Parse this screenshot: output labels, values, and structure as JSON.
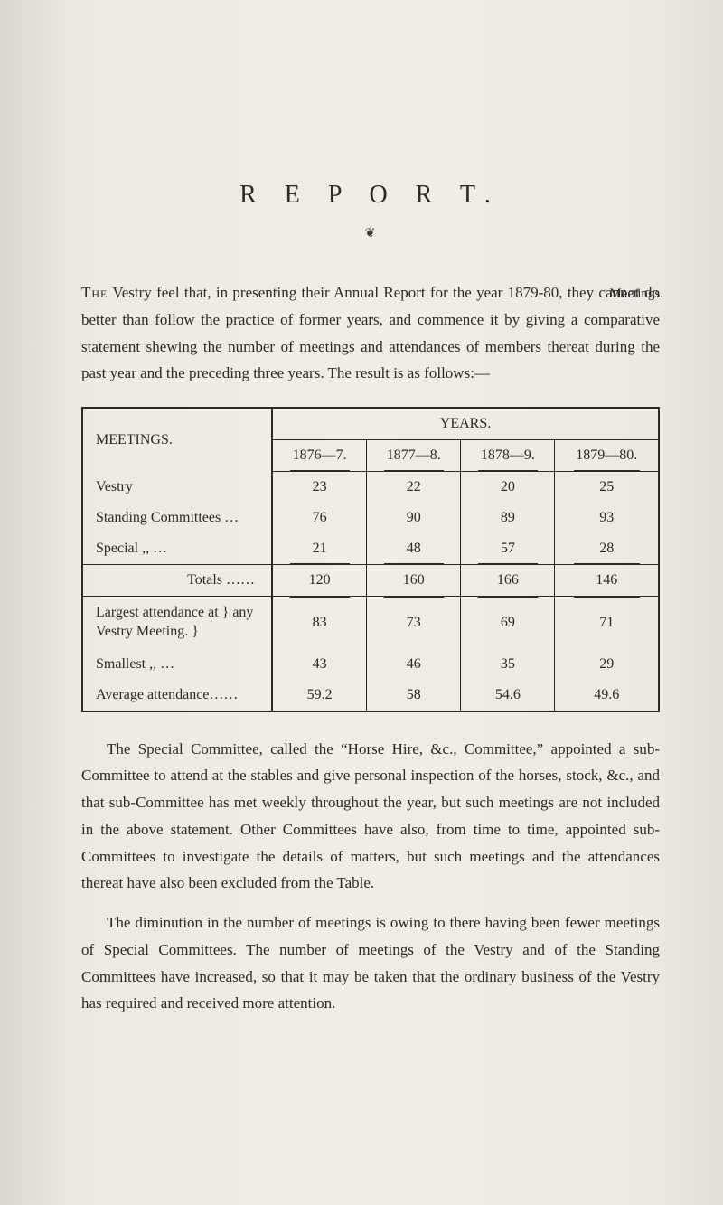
{
  "title": "R E P O R T.",
  "ornament": "❦",
  "margin_note": "Meetings.",
  "intro_lead": "The",
  "intro_rest": " Vestry feel that, in presenting their Annual Report for the year 1879-80, they cannot do better than follow the practice of former years, and commence it by giving a comparative statement shewing the number of meetings and attendances of members thereat during the past year and the preceding three years. The result is as follows:—",
  "table": {
    "row_header": "MEETINGS.",
    "super_header": "YEARS.",
    "year_cols": [
      "1876—7.",
      "1877—8.",
      "1878—9.",
      "1879—80."
    ],
    "rows": [
      {
        "label": "Vestry",
        "dots": true,
        "vals": [
          "23",
          "22",
          "20",
          "25"
        ]
      },
      {
        "label": "Standing Committees …",
        "dots": false,
        "vals": [
          "76",
          "90",
          "89",
          "93"
        ]
      },
      {
        "label": "Special       ,,       …",
        "dots": false,
        "vals": [
          "21",
          "48",
          "57",
          "28"
        ]
      }
    ],
    "totals": {
      "label": "Totals ……",
      "vals": [
        "120",
        "160",
        "166",
        "146"
      ]
    },
    "rows2": [
      {
        "label": "Largest attendance at } any Vestry Meeting. }",
        "vals": [
          "83",
          "73",
          "69",
          "71"
        ]
      },
      {
        "label": "Smallest       ,,       …",
        "vals": [
          "43",
          "46",
          "35",
          "29"
        ]
      },
      {
        "label": "Average attendance……",
        "vals": [
          "59.2",
          "58",
          "54.6",
          "49.6"
        ]
      }
    ],
    "border_color": "#2a2a28",
    "font_size": 16
  },
  "para1": "The Special Committee, called the “Horse Hire, &c., Committee,” appointed a sub-Committee to attend at the stables and give personal inspection of the horses, stock, &c., and that sub-Committee has met weekly throughout the year, but such meetings are not included in the above statement. Other Committees have also, from time to time, appointed sub-Committees to investigate the details of matters, but such meetings and the attendances thereat have also been excluded from the Table.",
  "para2": "The diminution in the number of meetings is owing to there having been fewer meetings of Special Committees. The number of meetings of the Vestry and of the Standing Committees have increased, so that it may be taken that the ordinary business of the Vestry has required and received more attention.",
  "colors": {
    "page_bg": "#ece9e1",
    "text": "#2a2a28"
  }
}
